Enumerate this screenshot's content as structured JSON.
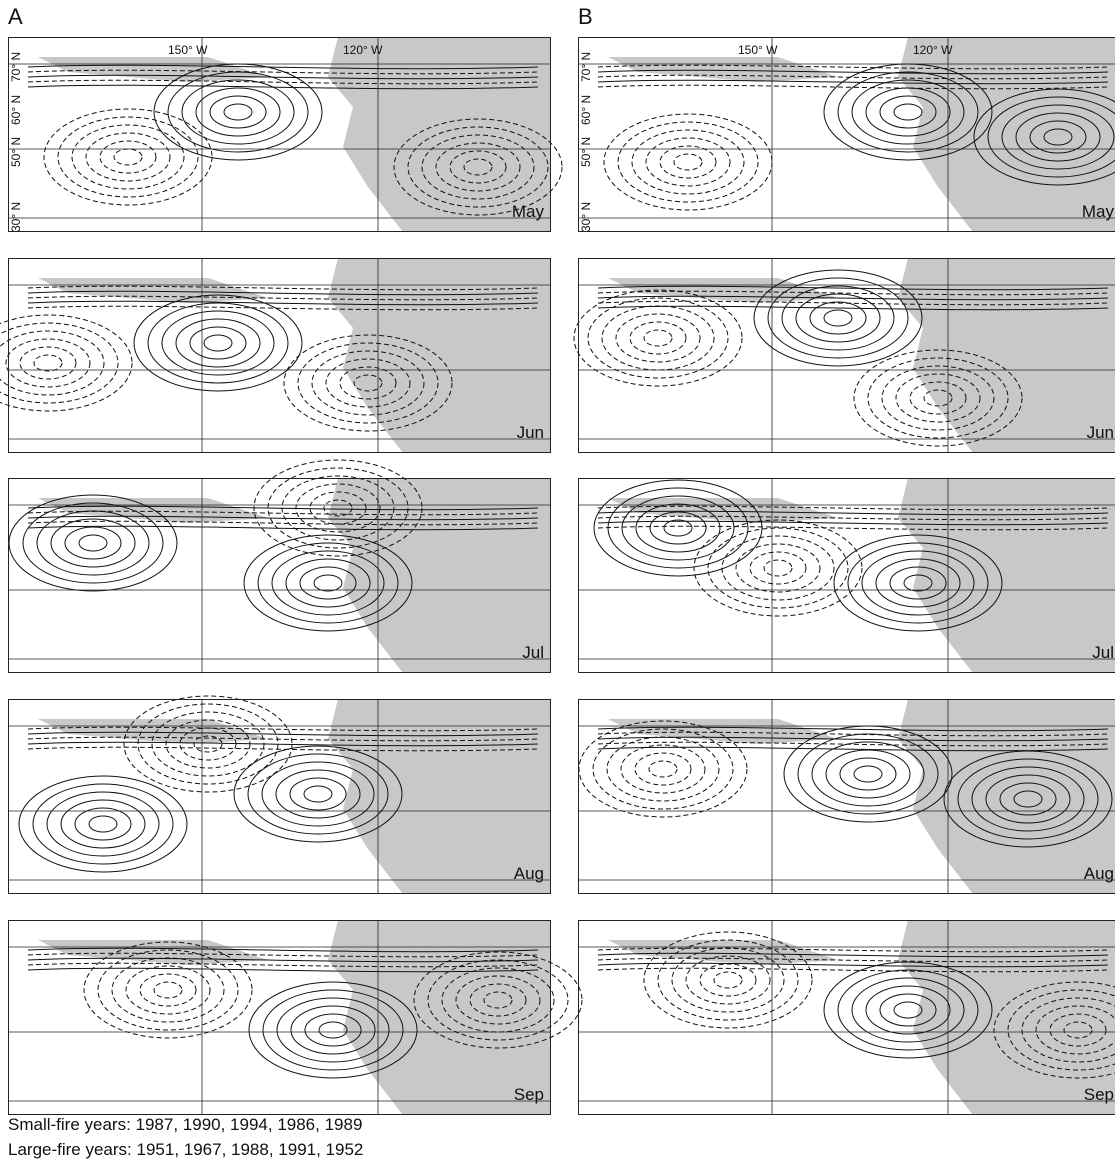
{
  "columns": [
    {
      "label": "A",
      "lon_labels": [
        "150° W",
        "120° W"
      ],
      "lat_labels": [
        "70° N",
        "60° N",
        "50° N",
        "30° N"
      ],
      "months": [
        "May",
        "Jun",
        "Jul",
        "Aug",
        "Sep"
      ]
    },
    {
      "label": "B",
      "lon_labels": [
        "150° W",
        "120° W"
      ],
      "lat_labels": [
        "70° N",
        "60° N",
        "50° N",
        "30° N"
      ],
      "months": [
        "May",
        "Jun",
        "Jul",
        "Aug",
        "Sep"
      ]
    }
  ],
  "caption": {
    "small": "Small-fire years: 1987, 1990, 1994, 1986, 1989",
    "large": "Large-fire years: 1951, 1967, 1988, 1991, 1952"
  },
  "colors": {
    "land": "#c8c8c8",
    "contour": "#111111",
    "frame": "#222222"
  }
}
